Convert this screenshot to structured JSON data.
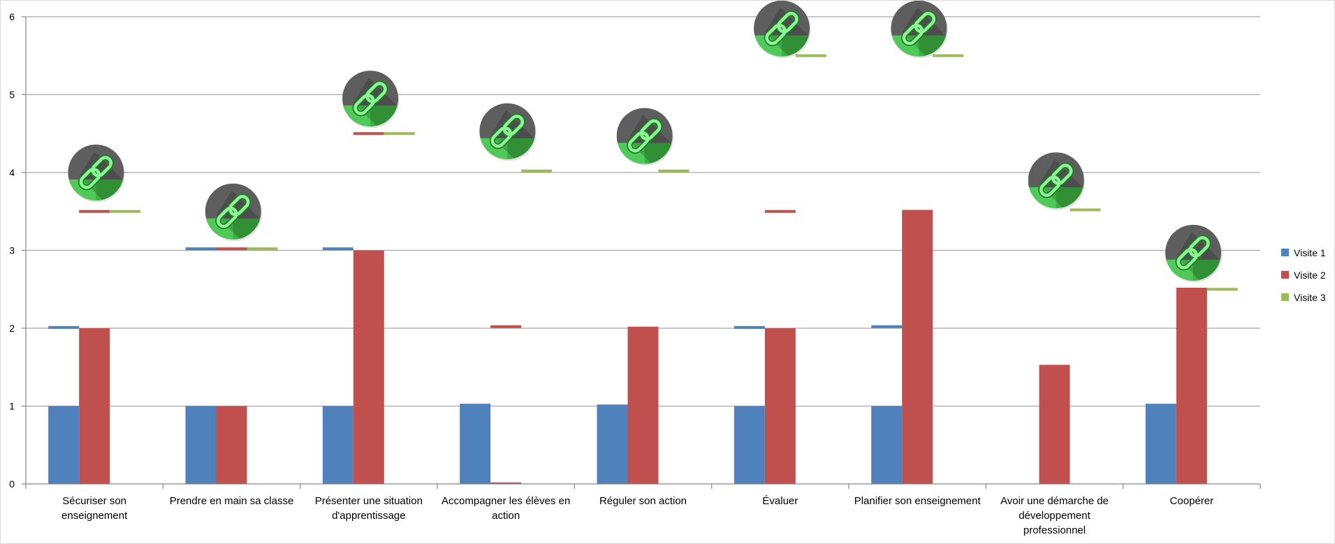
{
  "chart_data": {
    "type": "bar",
    "title": "",
    "xlabel": "",
    "ylabel": "",
    "ylim": [
      0,
      6
    ],
    "yticks": [
      0,
      1,
      2,
      3,
      4,
      5,
      6
    ],
    "grid": true,
    "legend_position": "right",
    "categories": [
      "Sécuriser son enseignement",
      "Prendre en main sa classe",
      "Présenter une situation d'apprentissage",
      "Accompagner les élèves en action",
      "Réguler son action",
      "Évaluer",
      "Planifier son enseignement",
      "Avoir une démarche de développement professionnel",
      "Coopérer"
    ],
    "category_lines": [
      [
        "Sécuriser son",
        "enseignement"
      ],
      [
        "Prendre en main sa classe"
      ],
      [
        "Présenter une situation",
        "d'apprentissage"
      ],
      [
        "Accompagner les élèves en",
        "action"
      ],
      [
        "Réguler son action"
      ],
      [
        "Évaluer"
      ],
      [
        "Planifier son enseignement"
      ],
      [
        "Avoir une démarche de",
        "développement",
        "professionnel"
      ],
      [
        "Coopérer"
      ]
    ],
    "series": [
      {
        "name": "Visite 1",
        "color": "#4f81bd",
        "values": [
          1,
          1,
          1,
          1.03,
          1.02,
          1,
          1,
          0,
          1.03
        ]
      },
      {
        "name": "Visite 2",
        "color": "#c0504d",
        "values": [
          2,
          1,
          3,
          0.02,
          2.02,
          2,
          3.52,
          1.53,
          2.52
        ]
      },
      {
        "name": "Visite 3",
        "color": "#9bbb59",
        "values": [
          0,
          0,
          0,
          0,
          0,
          0,
          0,
          0,
          0
        ]
      }
    ],
    "dash_markers": [
      {
        "series": 0,
        "category": 0,
        "value": 2.01
      },
      {
        "series": 1,
        "category": 0,
        "value": 3.5
      },
      {
        "series": 2,
        "category": 0,
        "value": 3.5
      },
      {
        "series": 0,
        "category": 1,
        "value": 3.02
      },
      {
        "series": 1,
        "category": 1,
        "value": 3.02
      },
      {
        "series": 2,
        "category": 1,
        "value": 3.02
      },
      {
        "series": 0,
        "category": 2,
        "value": 3.02
      },
      {
        "series": 1,
        "category": 2,
        "value": 4.5
      },
      {
        "series": 2,
        "category": 2,
        "value": 4.5
      },
      {
        "series": 1,
        "category": 3,
        "value": 2.02
      },
      {
        "series": 2,
        "category": 3,
        "value": 4.02
      },
      {
        "series": 2,
        "category": 4,
        "value": 4.02
      },
      {
        "series": 0,
        "category": 5,
        "value": 2.01
      },
      {
        "series": 1,
        "category": 5,
        "value": 3.5
      },
      {
        "series": 2,
        "category": 5,
        "value": 5.5
      },
      {
        "series": 0,
        "category": 6,
        "value": 2.02
      },
      {
        "series": 2,
        "category": 6,
        "value": 5.5
      },
      {
        "series": 2,
        "category": 7,
        "value": 3.52
      },
      {
        "series": 2,
        "category": 8,
        "value": 2.5
      }
    ],
    "link_icons": [
      {
        "category": 0,
        "value": 4.0
      },
      {
        "category": 1,
        "value": 3.5
      },
      {
        "category": 2,
        "value": 4.95
      },
      {
        "category": 3,
        "value": 4.53
      },
      {
        "category": 4,
        "value": 4.47
      },
      {
        "category": 5,
        "value": 5.85
      },
      {
        "category": 6,
        "value": 5.85
      },
      {
        "category": 7,
        "value": 3.9
      },
      {
        "category": 8,
        "value": 2.97
      }
    ]
  },
  "colors": {
    "grid": "#a6a6a6",
    "axis": "#868686",
    "icon_dark": "#5e5e5e",
    "icon_green": "#3cb043",
    "icon_green_light": "#5fe06a"
  },
  "icon_name": "link-icon"
}
